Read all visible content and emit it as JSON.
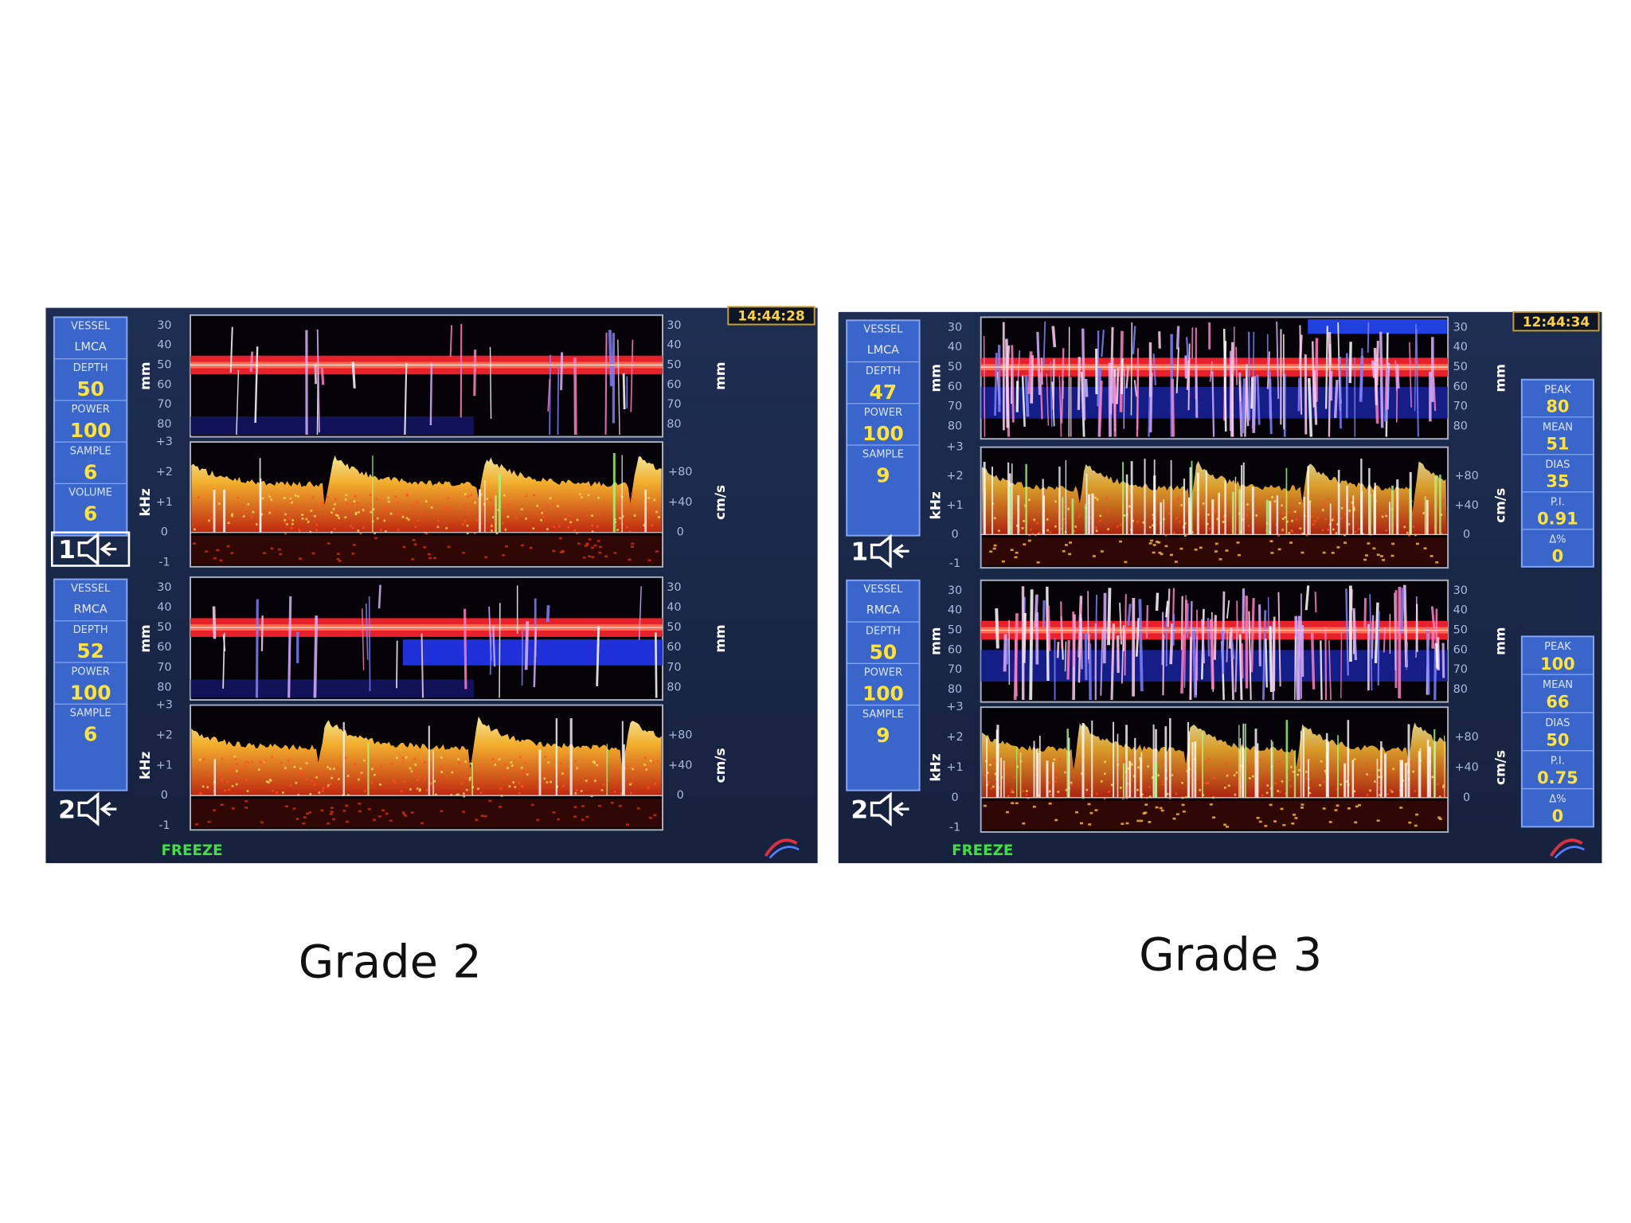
{
  "screens": [
    {
      "timestamp": "14:44:28",
      "status": "FREEZE",
      "caption": "Grade 2",
      "channels": [
        {
          "probe": "1",
          "params": [
            {
              "name": "VESSEL",
              "value": "LMCA"
            },
            {
              "name": "DEPTH",
              "value": "50"
            },
            {
              "name": "POWER",
              "value": "100"
            },
            {
              "name": "SAMPLE",
              "value": "6"
            },
            {
              "name": "VOLUME",
              "value": "6"
            }
          ]
        },
        {
          "probe": "2",
          "params": [
            {
              "name": "VESSEL",
              "value": "RMCA"
            },
            {
              "name": "DEPTH",
              "value": "52"
            },
            {
              "name": "POWER",
              "value": "100"
            },
            {
              "name": "SAMPLE",
              "value": "6"
            }
          ]
        }
      ]
    },
    {
      "timestamp": "12:44:34",
      "status": "FREEZE",
      "caption": "Grade 3",
      "channels": [
        {
          "probe": "1",
          "params": [
            {
              "name": "VESSEL",
              "value": "LMCA"
            },
            {
              "name": "DEPTH",
              "value": "47"
            },
            {
              "name": "POWER",
              "value": "100"
            },
            {
              "name": "SAMPLE",
              "value": "9"
            }
          ],
          "stats": [
            {
              "name": "PEAK",
              "value": "80"
            },
            {
              "name": "MEAN",
              "value": "51"
            },
            {
              "name": "DIAS",
              "value": "35"
            },
            {
              "name": "P.I.",
              "value": "0.91"
            },
            {
              "name": "Δ%",
              "value": "0"
            }
          ]
        },
        {
          "probe": "2",
          "params": [
            {
              "name": "VESSEL",
              "value": "RMCA"
            },
            {
              "name": "DEPTH",
              "value": "50"
            },
            {
              "name": "POWER",
              "value": "100"
            },
            {
              "name": "SAMPLE",
              "value": "9"
            }
          ],
          "stats": [
            {
              "name": "PEAK",
              "value": "100"
            },
            {
              "name": "MEAN",
              "value": "66"
            },
            {
              "name": "DIAS",
              "value": "50"
            },
            {
              "name": "P.I.",
              "value": "0.75"
            },
            {
              "name": "Δ%",
              "value": "0"
            }
          ]
        }
      ]
    }
  ],
  "axes": {
    "depth_unit": "mm",
    "depth_ticks": [
      "30",
      "40",
      "50",
      "60",
      "70",
      "80"
    ],
    "freq_unit": "kHz",
    "freq_ticks": [
      "+3",
      "+2",
      "+1",
      "0",
      "-1"
    ],
    "velocity_unit": "cm/s",
    "velocity_ticks": [
      "+80",
      "+40",
      "0"
    ]
  }
}
